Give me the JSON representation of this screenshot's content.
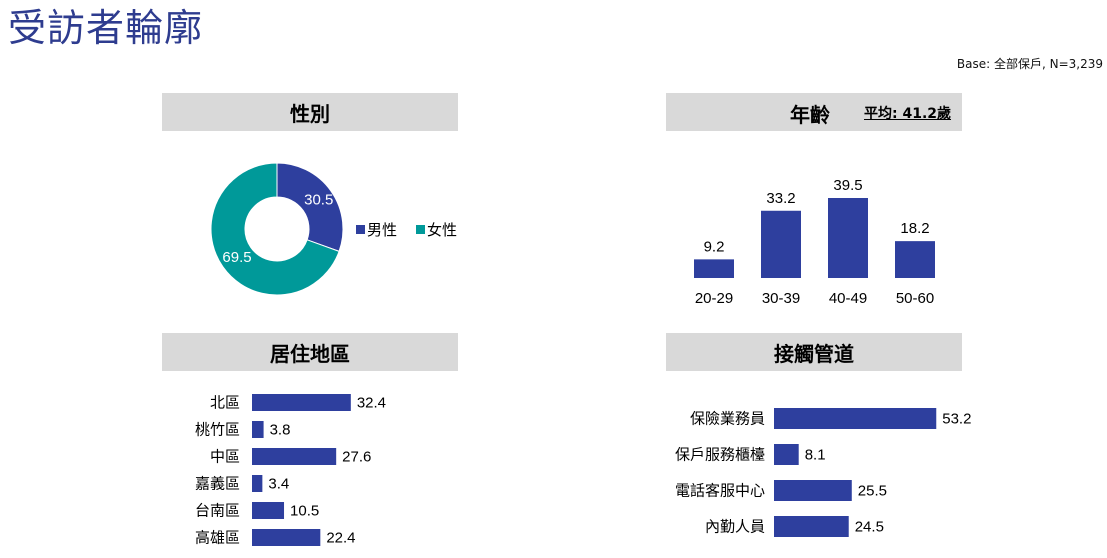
{
  "page": {
    "title": "受訪者輪廓",
    "base_note": "Base: 全部保戶, N=3,239"
  },
  "colors": {
    "bar": "#2E3F9E",
    "male": "#2E3F9E",
    "female": "#009999",
    "title": "#2E3C8F",
    "header_bg": "#D9D9D9"
  },
  "chart_data": [
    {
      "type": "pie",
      "title": "性別",
      "donut": true,
      "categories": [
        "男性",
        "女性"
      ],
      "values": [
        30.5,
        69.5
      ],
      "legend": "right"
    },
    {
      "type": "bar",
      "title": "年齡",
      "subtitle": "平均: 41.2歲",
      "orientation": "vertical",
      "categories": [
        "20-29",
        "30-39",
        "40-49",
        "50-60"
      ],
      "values": [
        9.2,
        33.2,
        39.5,
        18.2
      ],
      "ylim": [
        0,
        45
      ]
    },
    {
      "type": "bar",
      "title": "居住地區",
      "orientation": "horizontal",
      "categories": [
        "北區",
        "桃竹區",
        "中區",
        "嘉義區",
        "台南區",
        "高雄區"
      ],
      "values": [
        32.4,
        3.8,
        27.6,
        3.4,
        10.5,
        22.4
      ],
      "xlim": [
        0,
        60
      ]
    },
    {
      "type": "bar",
      "title": "接觸管道",
      "orientation": "horizontal",
      "categories": [
        "保險業務員",
        "保戶服務櫃檯",
        "電話客服中心",
        "內勤人員"
      ],
      "values": [
        53.2,
        8.1,
        25.5,
        24.5
      ],
      "xlim": [
        0,
        60
      ]
    }
  ]
}
